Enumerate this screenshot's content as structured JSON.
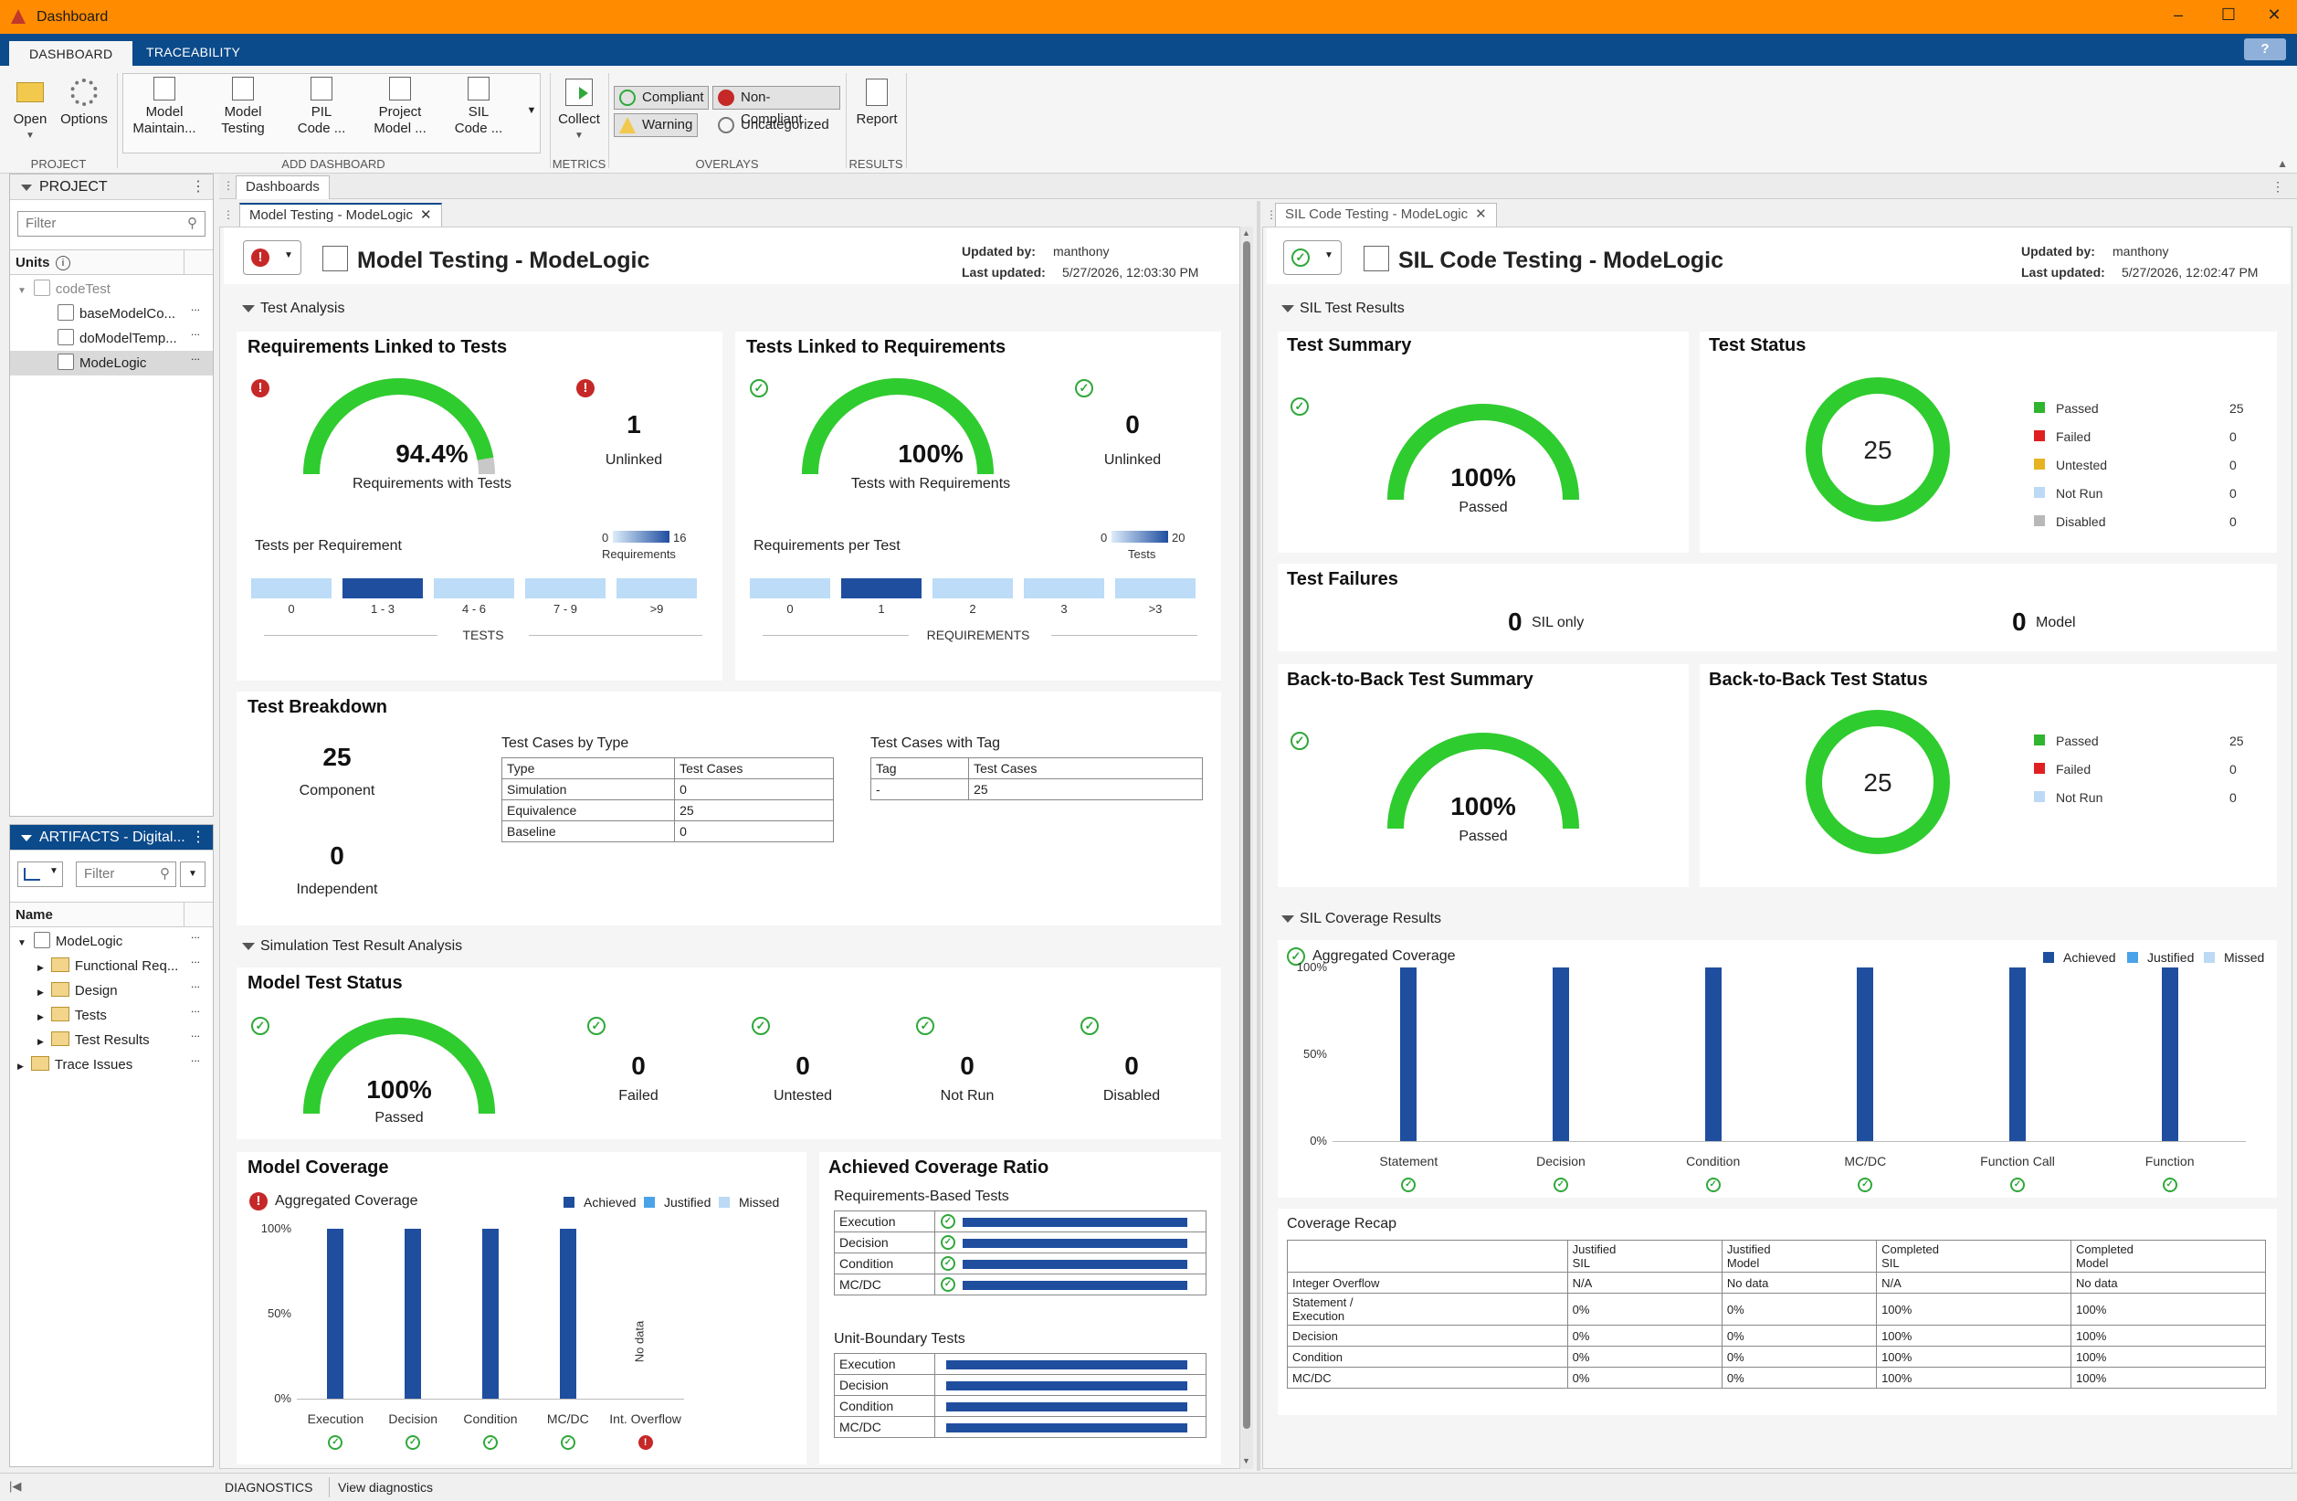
{
  "window": {
    "title": "Dashboard"
  },
  "tabs": [
    "DASHBOARD",
    "TRACEABILITY"
  ],
  "toolstrip": {
    "open": "Open",
    "options": "Options",
    "add": [
      {
        "l1": "Model",
        "l2": "Maintain..."
      },
      {
        "l1": "Model",
        "l2": "Testing"
      },
      {
        "l1": "PIL",
        "l2": "Code ..."
      },
      {
        "l1": "Project",
        "l2": "Model ..."
      },
      {
        "l1": "SIL",
        "l2": "Code ..."
      }
    ],
    "collect": "Collect",
    "overlays": {
      "compliant": "Compliant",
      "noncompliant": "Non-Compliant",
      "warning": "Warning",
      "uncategorized": "Uncategorized"
    },
    "report": "Report",
    "groups": [
      "PROJECT",
      "ADD DASHBOARD",
      "METRICS",
      "OVERLAYS",
      "RESULTS"
    ]
  },
  "project": {
    "title": "PROJECT",
    "filter": "Filter",
    "units_label": "Units",
    "root": "codeTest",
    "items": [
      "baseModelCo...",
      "doModelTemp...",
      "ModeLogic"
    ]
  },
  "artifacts": {
    "title": "ARTIFACTS - Digital...",
    "filter": "Filter",
    "name_col": "Name",
    "root": "ModeLogic",
    "items": [
      "Functional Req...",
      "Design",
      "Tests",
      "Test Results"
    ],
    "trace": "Trace Issues"
  },
  "dashboards_tab": "Dashboards",
  "left_dash": {
    "tab": "Model Testing - ModeLogic",
    "title": "Model Testing - ModeLogic",
    "updated_by_label": "Updated by:",
    "updated_by": "manthony",
    "last_updated_label": "Last updated:",
    "last_updated": "5/27/2026, 12:03:30 PM",
    "test_analysis": "Test Analysis",
    "rlt": {
      "title": "Requirements Linked to Tests",
      "pct": "94.4%",
      "pct_value": 94.4,
      "pct_label": "Requirements with Tests",
      "unlinked": "1",
      "unlinked_label": "Unlinked",
      "hist_label": "Tests per Requirement",
      "scale_min": "0",
      "scale_max": "16",
      "scale_label": "Requirements",
      "bins": [
        "0",
        "1 - 3",
        "4 - 6",
        "7 - 9",
        ">9"
      ],
      "axis": "TESTS"
    },
    "tlr": {
      "title": "Tests Linked to Requirements",
      "pct": "100%",
      "pct_value": 100,
      "pct_label": "Tests with Requirements",
      "unlinked": "0",
      "unlinked_label": "Unlinked",
      "hist_label": "Requirements per Test",
      "scale_min": "0",
      "scale_max": "20",
      "scale_label": "Tests",
      "bins": [
        "0",
        "1",
        "2",
        "3",
        ">3"
      ],
      "axis": "REQUIREMENTS"
    },
    "breakdown": {
      "title": "Test Breakdown",
      "component": "25",
      "component_label": "Component",
      "independent": "0",
      "independent_label": "Independent",
      "by_type_title": "Test Cases by Type",
      "by_type_head": [
        "Type",
        "Test Cases"
      ],
      "by_type": [
        [
          "Simulation",
          "0"
        ],
        [
          "Equivalence",
          "25"
        ],
        [
          "Baseline",
          "0"
        ]
      ],
      "by_tag_title": "Test Cases with Tag",
      "by_tag_head": [
        "Tag",
        "Test Cases"
      ],
      "by_tag": [
        [
          "-",
          "25"
        ]
      ]
    },
    "sim_section": "Simulation Test Result Analysis",
    "status": {
      "title": "Model Test Status",
      "pct": "100%",
      "pct_value": 100,
      "pct_label": "Passed",
      "failed": "0",
      "failed_label": "Failed",
      "untested": "0",
      "untested_label": "Untested",
      "notrun": "0",
      "notrun_label": "Not Run",
      "disabled": "0",
      "disabled_label": "Disabled"
    },
    "coverage": {
      "title": "Model Coverage",
      "agg": "Aggregated Coverage",
      "legend": [
        "Achieved",
        "Justified",
        "Missed"
      ],
      "ticks": [
        "100%",
        "50%",
        "0%"
      ],
      "categories": [
        "Execution",
        "Decision",
        "Condition",
        "MC/DC",
        "Int. Overflow"
      ],
      "values": [
        100,
        100,
        100,
        100,
        null
      ],
      "nodata": "No data"
    },
    "ratio": {
      "title": "Achieved Coverage Ratio",
      "rbt": "Requirements-Based Tests",
      "ubt": "Unit-Boundary Tests",
      "rows": [
        "Execution",
        "Decision",
        "Condition",
        "MC/DC"
      ]
    },
    "accent": "#2fcc2f",
    "bar": "#1f4e9f"
  },
  "right_dash": {
    "tab": "SIL Code Testing - ModeLogic",
    "title": "SIL Code Testing - ModeLogic",
    "updated_by_label": "Updated by:",
    "updated_by": "manthony",
    "last_updated_label": "Last updated:",
    "last_updated": "5/27/2026, 12:02:47 PM",
    "sil_results": "SIL Test Results",
    "summary": {
      "title": "Test Summary",
      "pct": "100%",
      "pct_value": 100,
      "pct_label": "Passed"
    },
    "status": {
      "title": "Test Status",
      "total": "25",
      "legend": [
        {
          "label": "Passed",
          "value": "25",
          "color": "#2fb52f"
        },
        {
          "label": "Failed",
          "value": "0",
          "color": "#e02020"
        },
        {
          "label": "Untested",
          "value": "0",
          "color": "#e6b422"
        },
        {
          "label": "Not Run",
          "value": "0",
          "color": "#bcd9f5"
        },
        {
          "label": "Disabled",
          "value": "0",
          "color": "#b8b8b8"
        }
      ]
    },
    "failures": {
      "title": "Test Failures",
      "sil": "0",
      "sil_label": "SIL only",
      "model": "0",
      "model_label": "Model"
    },
    "b2b_summary": {
      "title": "Back-to-Back Test Summary",
      "pct": "100%",
      "pct_value": 100,
      "pct_label": "Passed"
    },
    "b2b_status": {
      "title": "Back-to-Back Test Status",
      "total": "25",
      "legend": [
        {
          "label": "Passed",
          "value": "25",
          "color": "#2fb52f"
        },
        {
          "label": "Failed",
          "value": "0",
          "color": "#e02020"
        },
        {
          "label": "Not Run",
          "value": "0",
          "color": "#bcd9f5"
        }
      ]
    },
    "cov_section": "SIL Coverage Results",
    "coverage": {
      "agg": "Aggregated Coverage",
      "legend": [
        "Achieved",
        "Justified",
        "Missed"
      ],
      "ticks": [
        "100%",
        "50%",
        "0%"
      ],
      "categories": [
        "Statement",
        "Decision",
        "Condition",
        "MC/DC",
        "Function Call",
        "Function"
      ],
      "values": [
        100,
        100,
        100,
        100,
        100,
        100
      ]
    },
    "recap": {
      "title": "Coverage Recap",
      "head": [
        "",
        "Justified\nSIL",
        "Justified\nModel",
        "Completed\nSIL",
        "Completed\nModel"
      ],
      "rows": [
        [
          "Integer Overflow",
          "N/A",
          "No data",
          "N/A",
          "No data"
        ],
        [
          "Statement /\nExecution",
          "0%",
          "0%",
          "100%",
          "100%"
        ],
        [
          "Decision",
          "0%",
          "0%",
          "100%",
          "100%"
        ],
        [
          "Condition",
          "0%",
          "0%",
          "100%",
          "100%"
        ],
        [
          "MC/DC",
          "0%",
          "0%",
          "100%",
          "100%"
        ]
      ]
    }
  },
  "status_bar": {
    "diagnostics": "DIAGNOSTICS",
    "view": "View diagnostics"
  }
}
